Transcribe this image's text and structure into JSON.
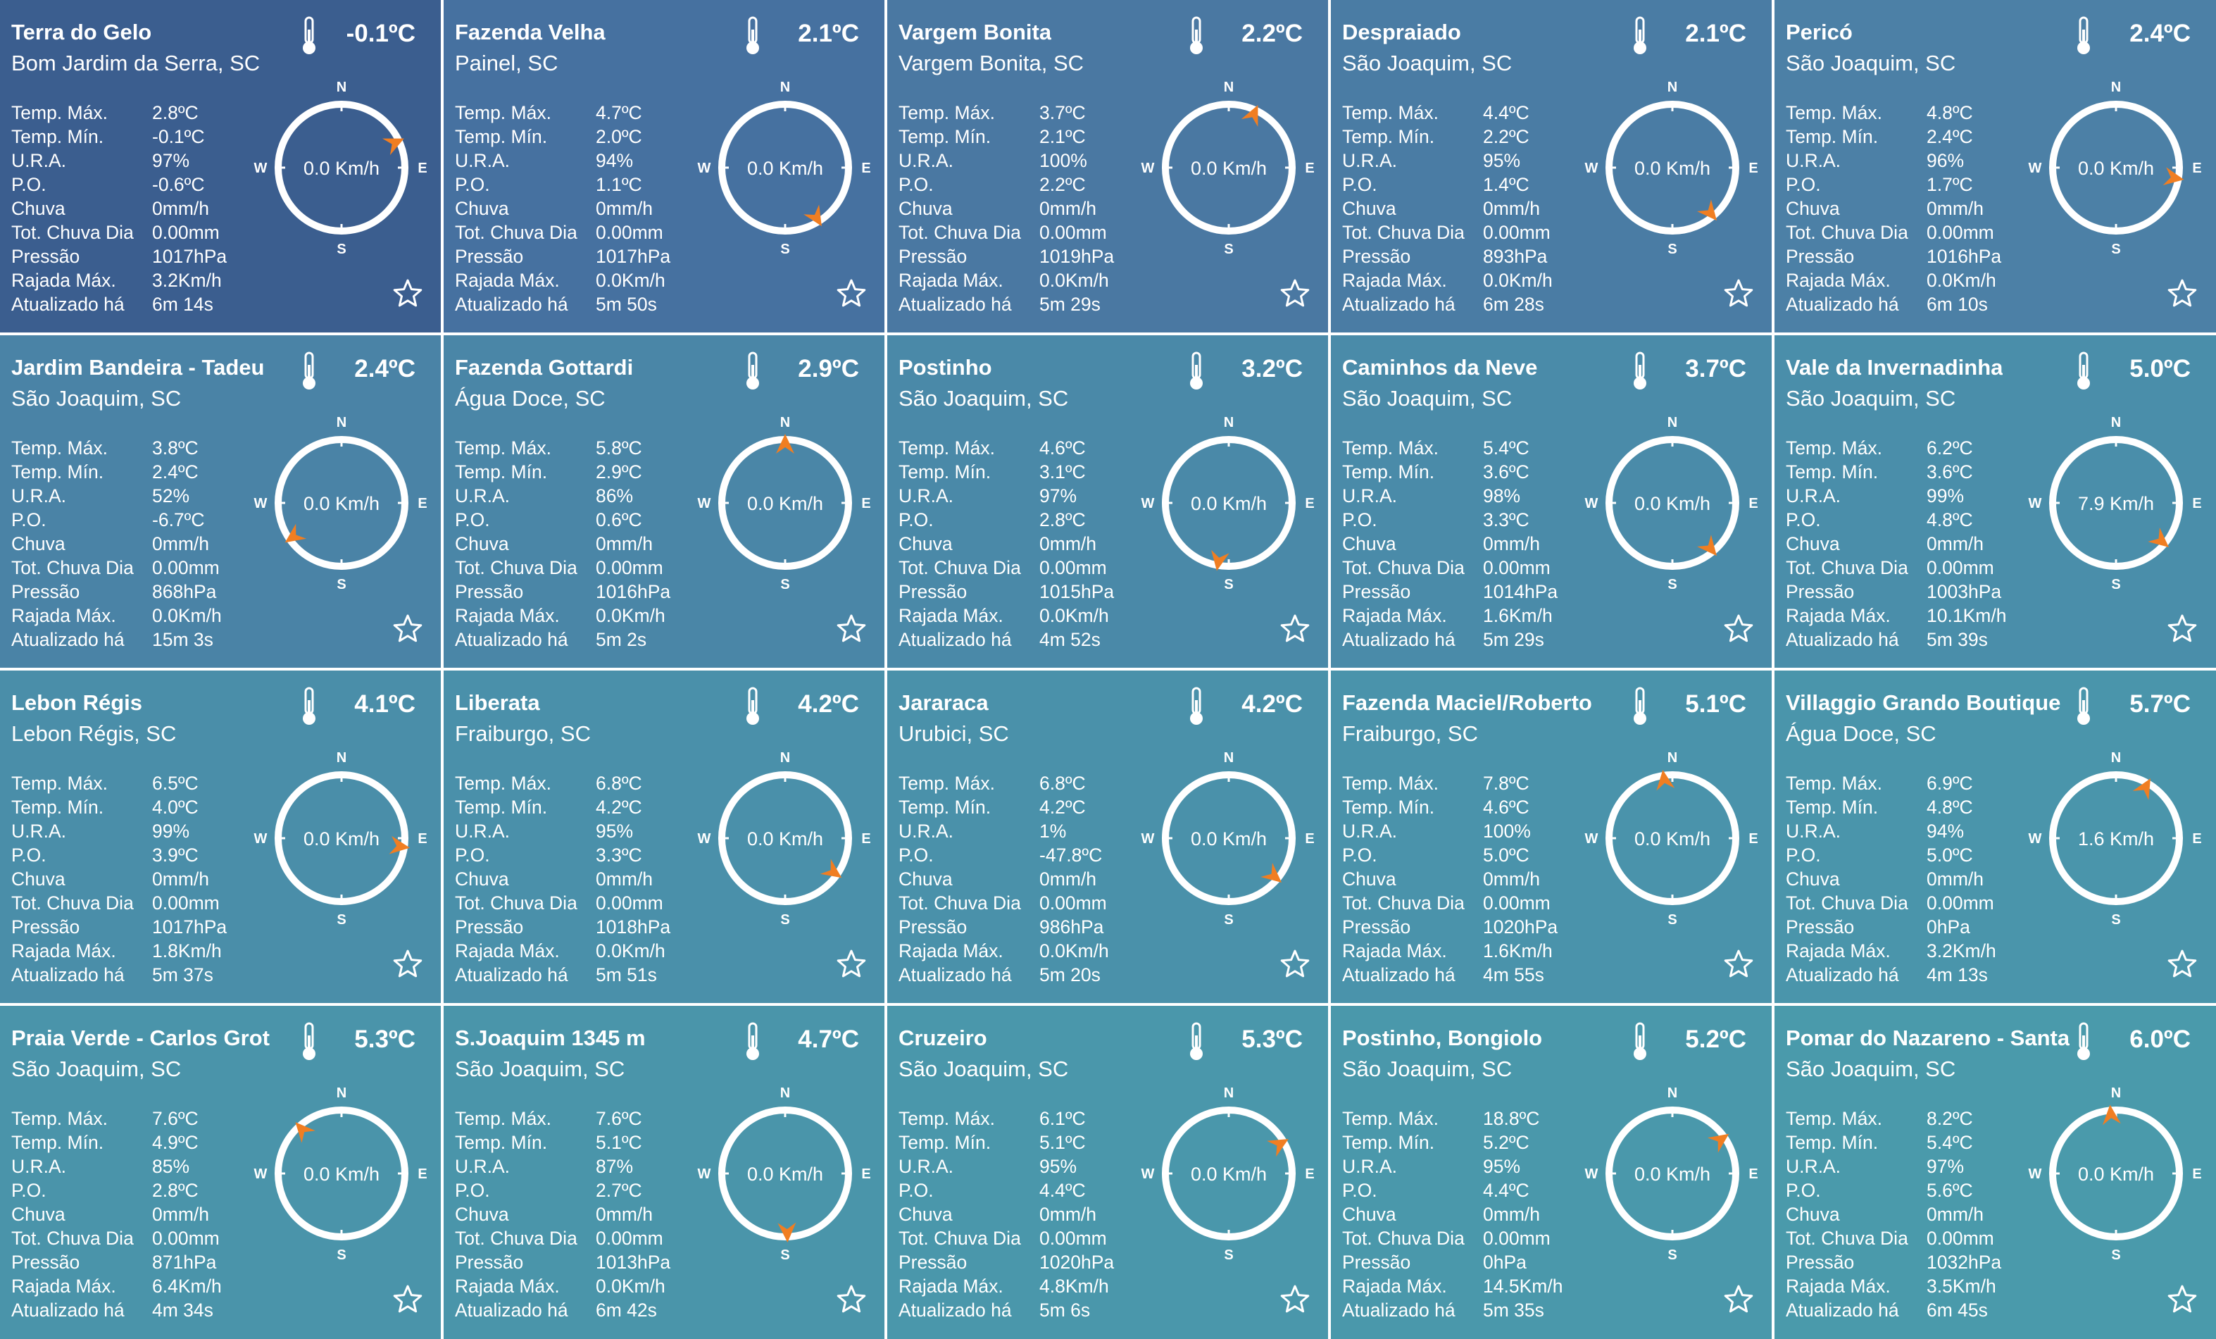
{
  "labels": {
    "temp_max": "Temp. Máx.",
    "temp_min": "Temp. Mín.",
    "ura": "U.R.A.",
    "po": "P.O.",
    "chuva": "Chuva",
    "tot_chuva": "Tot. Chuva Dia",
    "pressao": "Pressão",
    "rajada": "Rajada Máx.",
    "atualizado": "Atualizado há"
  },
  "compass_letters": {
    "n": "N",
    "s": "S",
    "e": "E",
    "w": "W"
  },
  "icons": {
    "thermometer": "thermometer-icon",
    "favorite": "star-icon",
    "wind_arrow": "wind-direction-arrow"
  },
  "colors": {
    "arrow": "#F07E22",
    "dial": "#FFFFFF",
    "text": "#FFFFFF"
  },
  "stations": [
    {
      "name": "Terra do Gelo",
      "location": "Bom Jardim da Serra, SC",
      "temp": "-0.1ºC",
      "temp_max": "2.8ºC",
      "temp_min": "-0.1ºC",
      "ura": "97%",
      "po": "-0.6ºC",
      "chuva": "0mm/h",
      "tot_chuva": "0.00mm",
      "pressao": "1017hPa",
      "rajada": "3.2Km/h",
      "atualizado": "6m 14s",
      "wind": "0.0 Km/h",
      "wind_dir_deg": 65,
      "bg": "#3B5E8F"
    },
    {
      "name": "Fazenda Velha",
      "location": "Painel, SC",
      "temp": "2.1ºC",
      "temp_max": "4.7ºC",
      "temp_min": "2.0ºC",
      "ura": "94%",
      "po": "1.1ºC",
      "chuva": "0mm/h",
      "tot_chuva": "0.00mm",
      "pressao": "1017hPa",
      "rajada": "0.0Km/h",
      "atualizado": "5m 50s",
      "wind": "0.0 Km/h",
      "wind_dir_deg": 148,
      "bg": "#4671A0"
    },
    {
      "name": "Vargem Bonita",
      "location": "Vargem Bonita, SC",
      "temp": "2.2ºC",
      "temp_max": "3.7ºC",
      "temp_min": "2.1ºC",
      "ura": "100%",
      "po": "2.2ºC",
      "chuva": "0mm/h",
      "tot_chuva": "0.00mm",
      "pressao": "1019hPa",
      "rajada": "0.0Km/h",
      "atualizado": "5m 29s",
      "wind": "0.0 Km/h",
      "wind_dir_deg": 25,
      "bg": "#4A78A2"
    },
    {
      "name": "Despraiado",
      "location": "São Joaquim, SC",
      "temp": "2.1ºC",
      "temp_max": "4.4ºC",
      "temp_min": "2.2ºC",
      "ura": "95%",
      "po": "1.4ºC",
      "chuva": "0mm/h",
      "tot_chuva": "0.00mm",
      "pressao": "893hPa",
      "rajada": "0.0Km/h",
      "atualizado": "6m 28s",
      "wind": "0.0 Km/h",
      "wind_dir_deg": 140,
      "bg": "#4A7CA4"
    },
    {
      "name": "Pericó",
      "location": "São Joaquim, SC",
      "temp": "2.4ºC",
      "temp_max": "4.8ºC",
      "temp_min": "2.4ºC",
      "ura": "96%",
      "po": "1.7ºC",
      "chuva": "0mm/h",
      "tot_chuva": "0.00mm",
      "pressao": "1016hPa",
      "rajada": "0.0Km/h",
      "atualizado": "6m 10s",
      "wind": "0.0 Km/h",
      "wind_dir_deg": 100,
      "bg": "#4C80A6"
    },
    {
      "name": "Jardim Bandeira - Tadeu",
      "location": "São Joaquim, SC",
      "temp": "2.4ºC",
      "temp_max": "3.8ºC",
      "temp_min": "2.4ºC",
      "ura": "52%",
      "po": "-6.7ºC",
      "chuva": "0mm/h",
      "tot_chuva": "0.00mm",
      "pressao": "868hPa",
      "rajada": "0.0Km/h",
      "atualizado": "15m 3s",
      "wind": "0.0 Km/h",
      "wind_dir_deg": 235,
      "bg": "#4A83A6"
    },
    {
      "name": "Fazenda Gottardi",
      "location": "Água Doce, SC",
      "temp": "2.9ºC",
      "temp_max": "5.8ºC",
      "temp_min": "2.9ºC",
      "ura": "86%",
      "po": "0.6ºC",
      "chuva": "0mm/h",
      "tot_chuva": "0.00mm",
      "pressao": "1016hPa",
      "rajada": "0.0Km/h",
      "atualizado": "5m 2s",
      "wind": "0.0 Km/h",
      "wind_dir_deg": 0,
      "bg": "#4A86A7"
    },
    {
      "name": "Postinho",
      "location": "São Joaquim, SC",
      "temp": "3.2ºC",
      "temp_max": "4.6ºC",
      "temp_min": "3.1ºC",
      "ura": "97%",
      "po": "2.8ºC",
      "chuva": "0mm/h",
      "tot_chuva": "0.00mm",
      "pressao": "1015hPa",
      "rajada": "0.0Km/h",
      "atualizado": "4m 52s",
      "wind": "0.0 Km/h",
      "wind_dir_deg": 190,
      "bg": "#4A89A8"
    },
    {
      "name": "Caminhos da Neve",
      "location": "São Joaquim, SC",
      "temp": "3.7ºC",
      "temp_max": "5.4ºC",
      "temp_min": "3.6ºC",
      "ura": "98%",
      "po": "3.3ºC",
      "chuva": "0mm/h",
      "tot_chuva": "0.00mm",
      "pressao": "1014hPa",
      "rajada": "1.6Km/h",
      "atualizado": "5m 29s",
      "wind": "0.0 Km/h",
      "wind_dir_deg": 140,
      "bg": "#4A8BA9"
    },
    {
      "name": "Vale da Invernadinha",
      "location": "São Joaquim, SC",
      "temp": "5.0ºC",
      "temp_max": "6.2ºC",
      "temp_min": "3.6ºC",
      "ura": "99%",
      "po": "4.8ºC",
      "chuva": "0mm/h",
      "tot_chuva": "0.00mm",
      "pressao": "1003hPa",
      "rajada": "10.1Km/h",
      "atualizado": "5m 39s",
      "wind": "7.9 Km/h",
      "wind_dir_deg": 130,
      "bg": "#4A8EAA"
    },
    {
      "name": "Lebon Régis",
      "location": "Lebon Régis, SC",
      "temp": "4.1ºC",
      "temp_max": "6.5ºC",
      "temp_min": "4.0ºC",
      "ura": "99%",
      "po": "3.9ºC",
      "chuva": "0mm/h",
      "tot_chuva": "0.00mm",
      "pressao": "1017hPa",
      "rajada": "1.8Km/h",
      "atualizado": "5m 37s",
      "wind": "0.0 Km/h",
      "wind_dir_deg": 98,
      "bg": "#4A8EA9"
    },
    {
      "name": "Liberata",
      "location": "Fraiburgo, SC",
      "temp": "4.2ºC",
      "temp_max": "6.8ºC",
      "temp_min": "4.2ºC",
      "ura": "95%",
      "po": "3.3ºC",
      "chuva": "0mm/h",
      "tot_chuva": "0.00mm",
      "pressao": "1018hPa",
      "rajada": "0.0Km/h",
      "atualizado": "5m 51s",
      "wind": "0.0 Km/h",
      "wind_dir_deg": 125,
      "bg": "#4A90AA"
    },
    {
      "name": "Jararaca",
      "location": "Urubici, SC",
      "temp": "4.2ºC",
      "temp_max": "6.8ºC",
      "temp_min": "4.2ºC",
      "ura": "1%",
      "po": "-47.8ºC",
      "chuva": "0mm/h",
      "tot_chuva": "0.00mm",
      "pressao": "986hPa",
      "rajada": "0.0Km/h",
      "atualizado": "5m 20s",
      "wind": "0.0 Km/h",
      "wind_dir_deg": 130,
      "bg": "#4A91AA"
    },
    {
      "name": "Fazenda Maciel/Roberto",
      "location": "Fraiburgo, SC",
      "temp": "5.1ºC",
      "temp_max": "7.8ºC",
      "temp_min": "4.6ºC",
      "ura": "100%",
      "po": "5.0ºC",
      "chuva": "0mm/h",
      "tot_chuva": "0.00mm",
      "pressao": "1020hPa",
      "rajada": "1.6Km/h",
      "atualizado": "4m 55s",
      "wind": "0.0 Km/h",
      "wind_dir_deg": 352,
      "bg": "#4A93AB"
    },
    {
      "name": "Villaggio Grando Boutique",
      "location": "Água Doce, SC",
      "temp": "5.7ºC",
      "temp_max": "6.9ºC",
      "temp_min": "4.8ºC",
      "ura": "94%",
      "po": "5.0ºC",
      "chuva": "0mm/h",
      "tot_chuva": "0.00mm",
      "pressao": "0hPa",
      "rajada": "3.2Km/h",
      "atualizado": "4m 13s",
      "wind": "1.6 Km/h",
      "wind_dir_deg": 30,
      "bg": "#4A95AB"
    },
    {
      "name": "Praia Verde - Carlos Grot",
      "location": "São Joaquim, SC",
      "temp": "5.3ºC",
      "temp_max": "7.6ºC",
      "temp_min": "4.9ºC",
      "ura": "85%",
      "po": "2.8ºC",
      "chuva": "0mm/h",
      "tot_chuva": "0.00mm",
      "pressao": "871hPa",
      "rajada": "6.4Km/h",
      "atualizado": "4m 34s",
      "wind": "0.0 Km/h",
      "wind_dir_deg": 318,
      "bg": "#4A94AA"
    },
    {
      "name": "S.Joaquim 1345 m",
      "location": "São Joaquim, SC",
      "temp": "4.7ºC",
      "temp_max": "7.6ºC",
      "temp_min": "5.1ºC",
      "ura": "87%",
      "po": "2.7ºC",
      "chuva": "0mm/h",
      "tot_chuva": "0.00mm",
      "pressao": "1013hPa",
      "rajada": "0.0Km/h",
      "atualizado": "6m 42s",
      "wind": "0.0 Km/h",
      "wind_dir_deg": 178,
      "bg": "#4A95AA"
    },
    {
      "name": "Cruzeiro",
      "location": "São Joaquim, SC",
      "temp": "5.3ºC",
      "temp_max": "6.1ºC",
      "temp_min": "5.1ºC",
      "ura": "95%",
      "po": "4.4ºC",
      "chuva": "0mm/h",
      "tot_chuva": "0.00mm",
      "pressao": "1020hPa",
      "rajada": "4.8Km/h",
      "atualizado": "5m 6s",
      "wind": "0.0 Km/h",
      "wind_dir_deg": 60,
      "bg": "#4A97AB"
    },
    {
      "name": "Postinho, Bongiolo",
      "location": "São Joaquim, SC",
      "temp": "5.2ºC",
      "temp_max": "18.8ºC",
      "temp_min": "5.2ºC",
      "ura": "95%",
      "po": "4.4ºC",
      "chuva": "0mm/h",
      "tot_chuva": "0.00mm",
      "pressao": "0hPa",
      "rajada": "14.5Km/h",
      "atualizado": "5m 35s",
      "wind": "0.0 Km/h",
      "wind_dir_deg": 55,
      "bg": "#4A98AB"
    },
    {
      "name": "Pomar do Nazareno - Santa",
      "location": "São Joaquim, SC",
      "temp": "6.0ºC",
      "temp_max": "8.2ºC",
      "temp_min": "5.4ºC",
      "ura": "97%",
      "po": "5.6ºC",
      "chuva": "0mm/h",
      "tot_chuva": "0.00mm",
      "pressao": "1032hPa",
      "rajada": "3.5Km/h",
      "atualizado": "6m 45s",
      "wind": "0.0 Km/h",
      "wind_dir_deg": 355,
      "bg": "#4A9AAB"
    }
  ]
}
